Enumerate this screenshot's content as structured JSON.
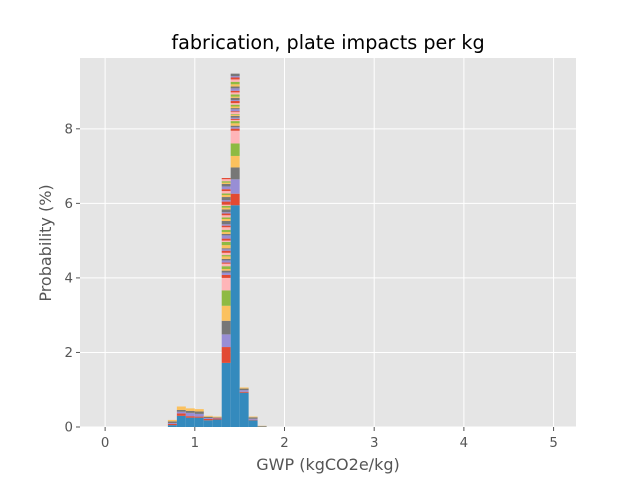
{
  "chart_data": {
    "type": "bar",
    "title": "fabrication, plate impacts per kg",
    "xlabel": "GWP (kgCO2e/kg)",
    "ylabel": "Probability (%)",
    "xlim": [
      -0.28,
      5.25
    ],
    "ylim": [
      0,
      9.9
    ],
    "xticks": [
      0,
      1,
      2,
      3,
      4,
      5
    ],
    "yticks": [
      0,
      2,
      4,
      6,
      8
    ],
    "grid": true,
    "stacked": true,
    "bin_width": 0.1,
    "palette": [
      "#348ABD",
      "#E24A33",
      "#988ED5",
      "#777777",
      "#FBC15E",
      "#8EBA42",
      "#FFB5B8"
    ],
    "bins": [
      {
        "x": 0.75,
        "total": 0.19,
        "base": 0.05
      },
      {
        "x": 0.85,
        "total": 0.55,
        "base": 0.3
      },
      {
        "x": 0.95,
        "total": 0.5,
        "base": 0.25
      },
      {
        "x": 1.05,
        "total": 0.48,
        "base": 0.25
      },
      {
        "x": 1.15,
        "total": 0.3,
        "base": 0.18
      },
      {
        "x": 1.25,
        "total": 0.28,
        "base": 0.2
      },
      {
        "x": 1.35,
        "total": 6.68,
        "base": 1.72
      },
      {
        "x": 1.45,
        "total": 9.48,
        "base": 5.95
      },
      {
        "x": 1.55,
        "total": 1.06,
        "base": 0.92
      },
      {
        "x": 1.65,
        "total": 0.28,
        "base": 0.18
      },
      {
        "x": 1.75,
        "total": 0.03,
        "base": 0.02
      }
    ]
  }
}
